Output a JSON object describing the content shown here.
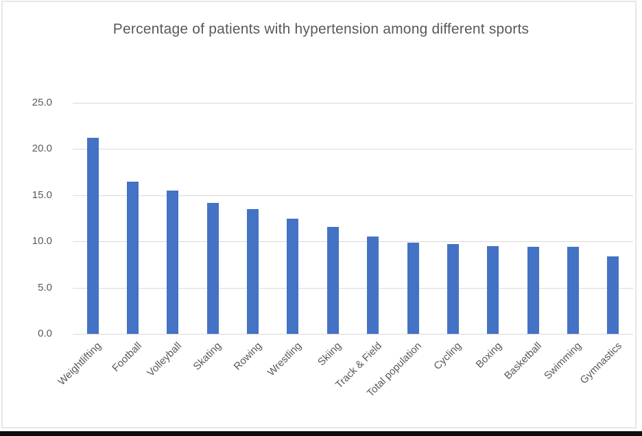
{
  "chart_data": {
    "type": "bar",
    "title": "Percentage of patients with hypertension among different sports",
    "categories": [
      "Weightlifting",
      "Football",
      "Volleyball",
      "Skating",
      "Rowing",
      "Wrestling",
      "Skiing",
      "Track & Field",
      "Total population",
      "Cycling",
      "Boxing",
      "Basketball",
      "Swimming",
      "Gymnastics"
    ],
    "values": [
      21.2,
      16.5,
      15.5,
      14.2,
      13.5,
      12.5,
      11.6,
      10.5,
      9.9,
      9.7,
      9.5,
      9.4,
      9.4,
      8.4
    ],
    "xlabel": "",
    "ylabel": "",
    "ylim": [
      0,
      25
    ],
    "yticks": [
      0,
      5,
      10,
      15,
      20,
      25
    ],
    "ytick_labels": [
      "0.0",
      "5.0",
      "10.0",
      "15.0",
      "20.0",
      "25.0"
    ],
    "grid": true,
    "legend_position": "none",
    "bar_color": "#4472C4",
    "gridline_color": "#D9D9D9",
    "text_color": "#595959"
  }
}
